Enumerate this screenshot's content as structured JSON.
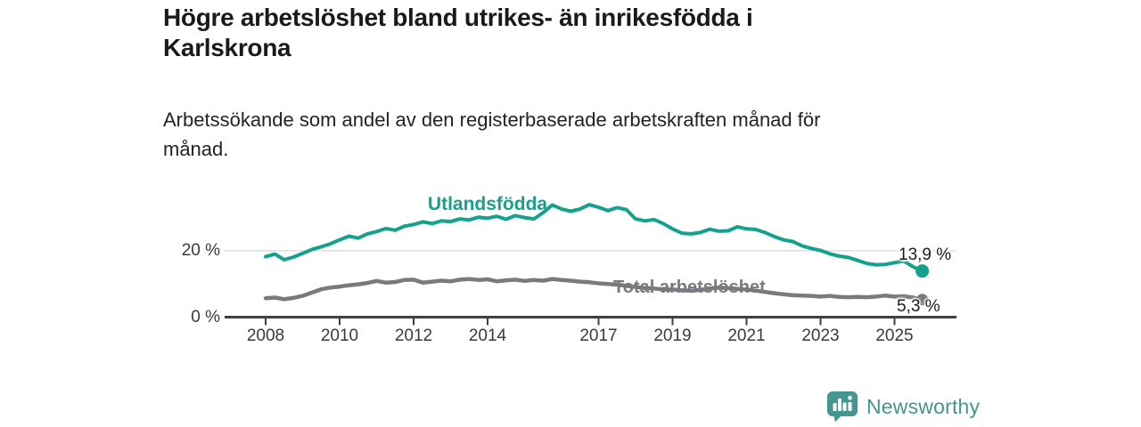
{
  "chart_data": {
    "type": "line",
    "title": "Högre arbetslöshet bland utrikes- än inrikesfödda i\nKarlskrona",
    "subtitle": "Arbetssökande som andel av den registerbaserade arbetskraften månad för\nmånad.",
    "x": {
      "start": 2008,
      "step_years": 0.25,
      "end": 2025.75
    },
    "x_axis": {
      "ticks": [
        2008,
        2010,
        2012,
        2014,
        2017,
        2019,
        2021,
        2023,
        2025
      ]
    },
    "y_axis": {
      "unit": "%",
      "range": [
        0,
        38
      ],
      "ticks": [
        {
          "value": 0,
          "label": "0 %"
        },
        {
          "value": 20,
          "label": "20 %"
        }
      ]
    },
    "grid": "horizontal-only",
    "legend": "inline-labels",
    "series": [
      {
        "name": "Utlandsfödda",
        "color": "#16a18e",
        "end_value": 13.9,
        "end_label": "13,9 %",
        "values": [
          18.2,
          19.0,
          17.3,
          18.1,
          19.2,
          20.4,
          21.2,
          22.1,
          23.3,
          24.4,
          23.8,
          25.1,
          25.8,
          26.7,
          26.2,
          27.4,
          27.9,
          28.7,
          28.2,
          29.0,
          28.8,
          29.6,
          29.3,
          30.1,
          29.8,
          30.4,
          29.5,
          30.6,
          30.0,
          29.6,
          31.5,
          33.8,
          32.6,
          31.9,
          32.6,
          33.9,
          33.1,
          32.1,
          33.0,
          32.4,
          29.6,
          29.0,
          29.4,
          28.2,
          26.6,
          25.3,
          25.1,
          25.5,
          26.5,
          25.9,
          26.0,
          27.2,
          26.6,
          26.4,
          25.5,
          24.3,
          23.3,
          22.8,
          21.5,
          20.7,
          20.1,
          19.1,
          18.4,
          18.0,
          17.1,
          16.2,
          15.8,
          15.9,
          16.4,
          16.9,
          15.2,
          13.9
        ]
      },
      {
        "name": "Total arbetslöshet",
        "color": "#7a797e",
        "end_value": 5.3,
        "end_label": "5,3 %",
        "values": [
          5.7,
          5.9,
          5.4,
          5.8,
          6.4,
          7.4,
          8.4,
          8.9,
          9.2,
          9.6,
          9.9,
          10.3,
          10.9,
          10.4,
          10.6,
          11.2,
          11.3,
          10.4,
          10.7,
          11.0,
          10.8,
          11.3,
          11.5,
          11.2,
          11.4,
          10.8,
          11.1,
          11.3,
          10.9,
          11.2,
          11.0,
          11.5,
          11.2,
          11.0,
          10.7,
          10.5,
          10.2,
          10.0,
          9.8,
          9.4,
          9.1,
          8.8,
          8.6,
          8.4,
          8.3,
          8.1,
          8.0,
          8.2,
          8.6,
          8.9,
          8.7,
          8.5,
          8.3,
          8.0,
          7.6,
          7.2,
          6.9,
          6.6,
          6.5,
          6.4,
          6.2,
          6.4,
          6.1,
          6.0,
          6.1,
          6.0,
          6.2,
          6.5,
          6.2,
          6.3,
          5.9,
          5.3
        ]
      }
    ],
    "colors": {
      "axis": "#404040",
      "gridline": "#d9d9d9",
      "tick_text": "#3a3a3a"
    }
  },
  "branding": {
    "wordmark": "Newsworthy",
    "logo_icon": "bar-chart-speech-bubble-icon",
    "color": "#44968f"
  }
}
